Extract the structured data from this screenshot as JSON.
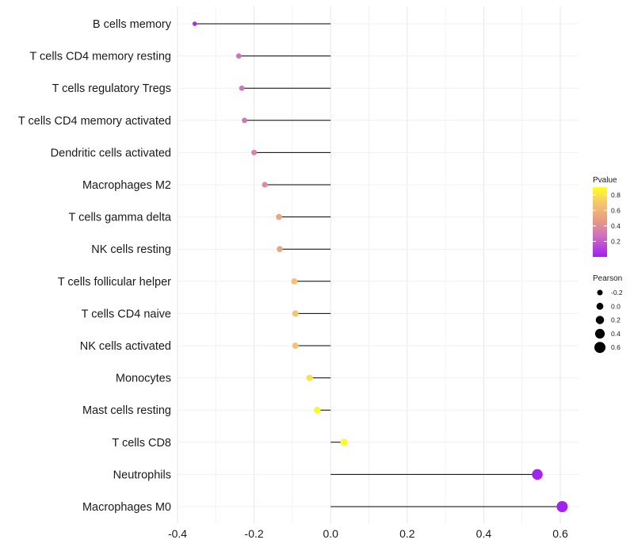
{
  "chart_data": {
    "type": "lollipop",
    "title": "",
    "xlabel": "",
    "ylabel": "",
    "xlim": [
      -0.4,
      0.6
    ],
    "x_ticks": [
      -0.4,
      -0.2,
      0.0,
      0.2,
      0.4,
      0.6
    ],
    "x_tick_labels": [
      "-0.4",
      "-0.2",
      "0.0",
      "0.2",
      "0.4",
      "0.6"
    ],
    "grid": true,
    "points": [
      {
        "label": "B cells memory",
        "x": -0.355,
        "pvalue": 0.05
      },
      {
        "label": "T cells CD4 memory resting",
        "x": -0.24,
        "pvalue": 0.27
      },
      {
        "label": "T cells regulatory  Tregs",
        "x": -0.232,
        "pvalue": 0.29
      },
      {
        "label": "T cells CD4 memory activated",
        "x": -0.225,
        "pvalue": 0.3
      },
      {
        "label": "Dendritic cells activated",
        "x": -0.2,
        "pvalue": 0.35
      },
      {
        "label": "Macrophages M2",
        "x": -0.172,
        "pvalue": 0.4
      },
      {
        "label": "T cells gamma delta",
        "x": -0.135,
        "pvalue": 0.53
      },
      {
        "label": "NK cells resting",
        "x": -0.133,
        "pvalue": 0.53
      },
      {
        "label": "T cells follicular helper",
        "x": -0.095,
        "pvalue": 0.67
      },
      {
        "label": "T cells CD4 naive",
        "x": -0.092,
        "pvalue": 0.68
      },
      {
        "label": "NK cells activated",
        "x": -0.092,
        "pvalue": 0.68
      },
      {
        "label": "Monocytes",
        "x": -0.055,
        "pvalue": 0.8
      },
      {
        "label": "Mast cells resting",
        "x": -0.035,
        "pvalue": 0.87
      },
      {
        "label": "T cells CD8",
        "x": 0.035,
        "pvalue": 0.88
      },
      {
        "label": "Neutrophils",
        "x": 0.54,
        "pvalue": 0.015
      },
      {
        "label": "Macrophages M0",
        "x": 0.605,
        "pvalue": 0.005
      }
    ],
    "color_legend": {
      "title": "Pvalue",
      "ticks": [
        0.2,
        0.4,
        0.6,
        0.8
      ],
      "tick_labels": [
        "0.2",
        "0.4",
        "0.6",
        "0.8"
      ],
      "range": [
        0.0,
        0.9
      ],
      "colors": [
        "#a020f0",
        "#d070c0",
        "#e8a080",
        "#f5c870",
        "#ffff20"
      ]
    },
    "size_legend": {
      "title": "Pearson",
      "values": [
        -0.2,
        0.0,
        0.2,
        0.4,
        0.6
      ],
      "labels": [
        "-0.2",
        "0.0",
        "0.2",
        "0.4",
        "0.6"
      ]
    },
    "legend_placement": "right"
  }
}
